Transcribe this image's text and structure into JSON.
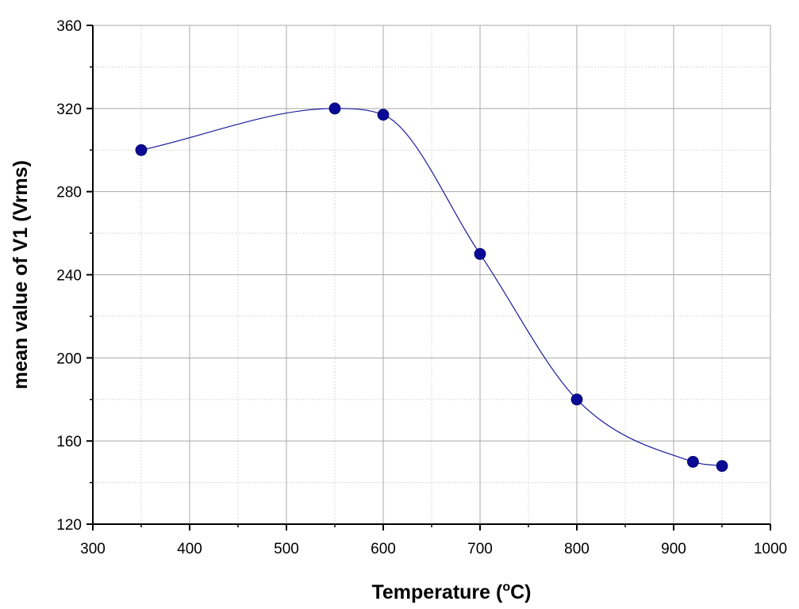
{
  "chart_data": {
    "type": "line",
    "title": "",
    "xlabel": "Temperature (",
    "xlabel_superscript": "o",
    "xlabel_suffix": "C)",
    "ylabel": "mean value of V1 (Vrms)",
    "xlim": [
      300,
      1000
    ],
    "ylim": [
      120,
      360
    ],
    "x_ticks": [
      "300",
      "400",
      "500",
      "600",
      "700",
      "800",
      "900",
      "1000"
    ],
    "y_ticks": [
      "120",
      "160",
      "200",
      "240",
      "280",
      "320",
      "360"
    ],
    "x_tick_values": [
      300,
      400,
      500,
      600,
      700,
      800,
      900,
      1000
    ],
    "y_tick_values": [
      120,
      160,
      200,
      240,
      280,
      320,
      360
    ],
    "grid": true,
    "minor_grid": true,
    "smooth_line": true,
    "series": [
      {
        "x": [
          350,
          550,
          600,
          700,
          800,
          920,
          950
        ],
        "y": [
          300,
          320,
          317,
          250,
          180,
          150,
          148
        ]
      }
    ],
    "colors": {
      "line": "#1a1a9c",
      "marker": "#0a0a96",
      "grid_major": "#a8a8a8",
      "grid_minor": "#d8d8d8",
      "axis": "#000000"
    }
  }
}
